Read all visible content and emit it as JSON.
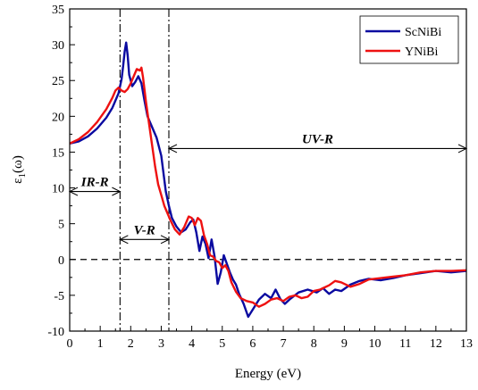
{
  "chart_data": {
    "type": "line",
    "title": "",
    "xlabel": "Energy (eV)",
    "ylabel": "ε1(ω)",
    "ylabel_parts": {
      "main": "ε",
      "sub": "1",
      "rest": "(ω)"
    },
    "xlim": [
      0,
      13
    ],
    "ylim": [
      -10,
      35
    ],
    "x_ticks": [
      0,
      1,
      2,
      3,
      4,
      5,
      6,
      7,
      8,
      9,
      10,
      11,
      12,
      13
    ],
    "y_ticks": [
      -10,
      -5,
      0,
      5,
      10,
      15,
      20,
      25,
      30,
      35
    ],
    "grid": false,
    "legend_position": "top-right",
    "colors": {
      "ScNiBi": "#0a0aa0",
      "YNiBi": "#ee1111"
    },
    "series": [
      {
        "name": "ScNiBi",
        "color": "#0a0aa0",
        "x": [
          0,
          0.3,
          0.6,
          0.9,
          1.2,
          1.4,
          1.6,
          1.7,
          1.75,
          1.8,
          1.85,
          1.9,
          1.95,
          2.05,
          2.15,
          2.25,
          2.35,
          2.45,
          2.55,
          2.7,
          2.85,
          3.0,
          3.15,
          3.25,
          3.35,
          3.5,
          3.65,
          3.8,
          3.95,
          4.05,
          4.15,
          4.25,
          4.35,
          4.45,
          4.55,
          4.65,
          4.75,
          4.85,
          4.95,
          5.05,
          5.15,
          5.25,
          5.35,
          5.45,
          5.55,
          5.7,
          5.85,
          6.0,
          6.2,
          6.4,
          6.6,
          6.75,
          6.9,
          7.05,
          7.2,
          7.5,
          7.8,
          8.1,
          8.3,
          8.5,
          8.7,
          8.9,
          9.2,
          9.5,
          9.8,
          10.2,
          10.6,
          11.0,
          11.5,
          12.0,
          12.5,
          13.0
        ],
        "y": [
          16.2,
          16.5,
          17.2,
          18.3,
          19.8,
          21.2,
          23.2,
          25.2,
          27.0,
          29.0,
          30.3,
          28.5,
          25.8,
          24.2,
          24.8,
          25.6,
          24.6,
          22.2,
          20.0,
          18.5,
          17.0,
          14.5,
          9.5,
          7.5,
          5.8,
          4.6,
          3.8,
          4.2,
          5.2,
          5.6,
          3.8,
          1.2,
          3.2,
          2.2,
          0.2,
          2.8,
          0.4,
          -3.4,
          -1.8,
          0.6,
          -0.6,
          -1.8,
          -2.8,
          -3.5,
          -4.8,
          -6.2,
          -8.0,
          -7.0,
          -5.6,
          -4.8,
          -5.4,
          -4.2,
          -5.5,
          -6.2,
          -5.6,
          -4.6,
          -4.2,
          -4.6,
          -4.0,
          -4.8,
          -4.2,
          -4.4,
          -3.5,
          -3.0,
          -2.7,
          -2.9,
          -2.6,
          -2.2,
          -1.9,
          -1.6,
          -1.8,
          -1.6
        ]
      },
      {
        "name": "YNiBi",
        "color": "#ee1111",
        "x": [
          0,
          0.3,
          0.6,
          0.9,
          1.2,
          1.4,
          1.5,
          1.6,
          1.7,
          1.8,
          1.9,
          2.0,
          2.1,
          2.2,
          2.3,
          2.35,
          2.4,
          2.5,
          2.6,
          2.7,
          2.8,
          2.9,
          3.0,
          3.1,
          3.2,
          3.3,
          3.45,
          3.6,
          3.75,
          3.9,
          4.0,
          4.1,
          4.2,
          4.3,
          4.4,
          4.5,
          4.6,
          4.7,
          4.8,
          4.9,
          5.0,
          5.1,
          5.2,
          5.3,
          5.45,
          5.6,
          5.8,
          6.0,
          6.2,
          6.4,
          6.6,
          6.8,
          7.0,
          7.2,
          7.4,
          7.6,
          7.8,
          8.0,
          8.2,
          8.5,
          8.7,
          8.9,
          9.2,
          9.5,
          9.8,
          10.2,
          10.6,
          11.0,
          11.5,
          12.0,
          12.5,
          13.0
        ],
        "y": [
          16.2,
          16.8,
          17.8,
          19.2,
          21.0,
          22.6,
          23.6,
          24.0,
          23.6,
          23.4,
          23.8,
          24.6,
          25.6,
          26.6,
          26.4,
          26.8,
          25.5,
          22.0,
          19.0,
          16.0,
          13.0,
          10.5,
          9.0,
          7.5,
          6.5,
          5.5,
          4.2,
          3.5,
          4.5,
          6.0,
          5.8,
          4.8,
          5.8,
          5.4,
          3.4,
          2.2,
          0.6,
          0.4,
          -0.2,
          -0.4,
          -1.2,
          -0.8,
          -1.6,
          -3.2,
          -4.5,
          -5.4,
          -5.8,
          -6.0,
          -6.6,
          -6.2,
          -5.6,
          -5.4,
          -5.8,
          -5.2,
          -5.0,
          -5.4,
          -5.2,
          -4.4,
          -4.2,
          -3.6,
          -3.0,
          -3.2,
          -3.8,
          -3.4,
          -2.8,
          -2.6,
          -2.4,
          -2.2,
          -1.8,
          -1.6,
          -1.6,
          -1.5
        ]
      }
    ],
    "reference_lines": {
      "vertical_x": [
        1.65,
        3.25
      ],
      "horizontal_y": 0
    },
    "annotations": [
      {
        "text": "IR-R",
        "from_x": 0,
        "to_x": 1.65,
        "y": 9.5
      },
      {
        "text": "V-R",
        "from_x": 1.65,
        "to_x": 3.25,
        "y": 2.8
      },
      {
        "text": "UV-R",
        "from_x": 3.25,
        "to_x": 13,
        "y": 15.5
      }
    ]
  }
}
